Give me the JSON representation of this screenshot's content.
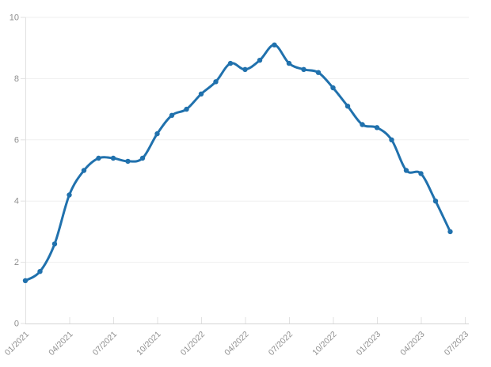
{
  "chart_data": {
    "type": "line",
    "title": "",
    "xlabel": "",
    "ylabel": "",
    "legend": "none",
    "grid": "horizontal",
    "ylim": [
      0,
      10
    ],
    "y_ticks": [
      0,
      2,
      4,
      6,
      8,
      10
    ],
    "x_tick_labels": [
      "01/2021",
      "04/2021",
      "07/2021",
      "10/2021",
      "01/2022",
      "04/2022",
      "07/2022",
      "10/2022",
      "01/2023",
      "04/2023",
      "07/2023"
    ],
    "x": [
      "01/2021",
      "02/2021",
      "03/2021",
      "04/2021",
      "05/2021",
      "06/2021",
      "07/2021",
      "08/2021",
      "09/2021",
      "10/2021",
      "11/2021",
      "12/2021",
      "01/2022",
      "02/2022",
      "03/2022",
      "04/2022",
      "05/2022",
      "06/2022",
      "07/2022",
      "08/2022",
      "09/2022",
      "10/2022",
      "11/2022",
      "12/2022",
      "01/2023",
      "02/2023",
      "03/2023",
      "04/2023",
      "05/2023",
      "06/2023"
    ],
    "series": [
      {
        "name": "value",
        "values": [
          1.4,
          1.7,
          2.6,
          4.2,
          5.0,
          5.4,
          5.4,
          5.3,
          5.4,
          6.2,
          6.8,
          7.0,
          7.5,
          7.9,
          8.5,
          8.3,
          8.6,
          9.1,
          8.5,
          8.3,
          8.2,
          7.7,
          7.1,
          6.5,
          6.4,
          6.0,
          5.0,
          4.9,
          4.0,
          3.0
        ]
      }
    ],
    "colors": {
      "line": "#2071ad",
      "marker": "#2071ad",
      "gridline": "#efefef",
      "x_axis_line": "#d4d4d4",
      "y_axis_line": "#e2e2e2",
      "tick_mark": "#e2e2e2",
      "axis_label": "#8e8e8e",
      "background": "#ffffff"
    }
  }
}
